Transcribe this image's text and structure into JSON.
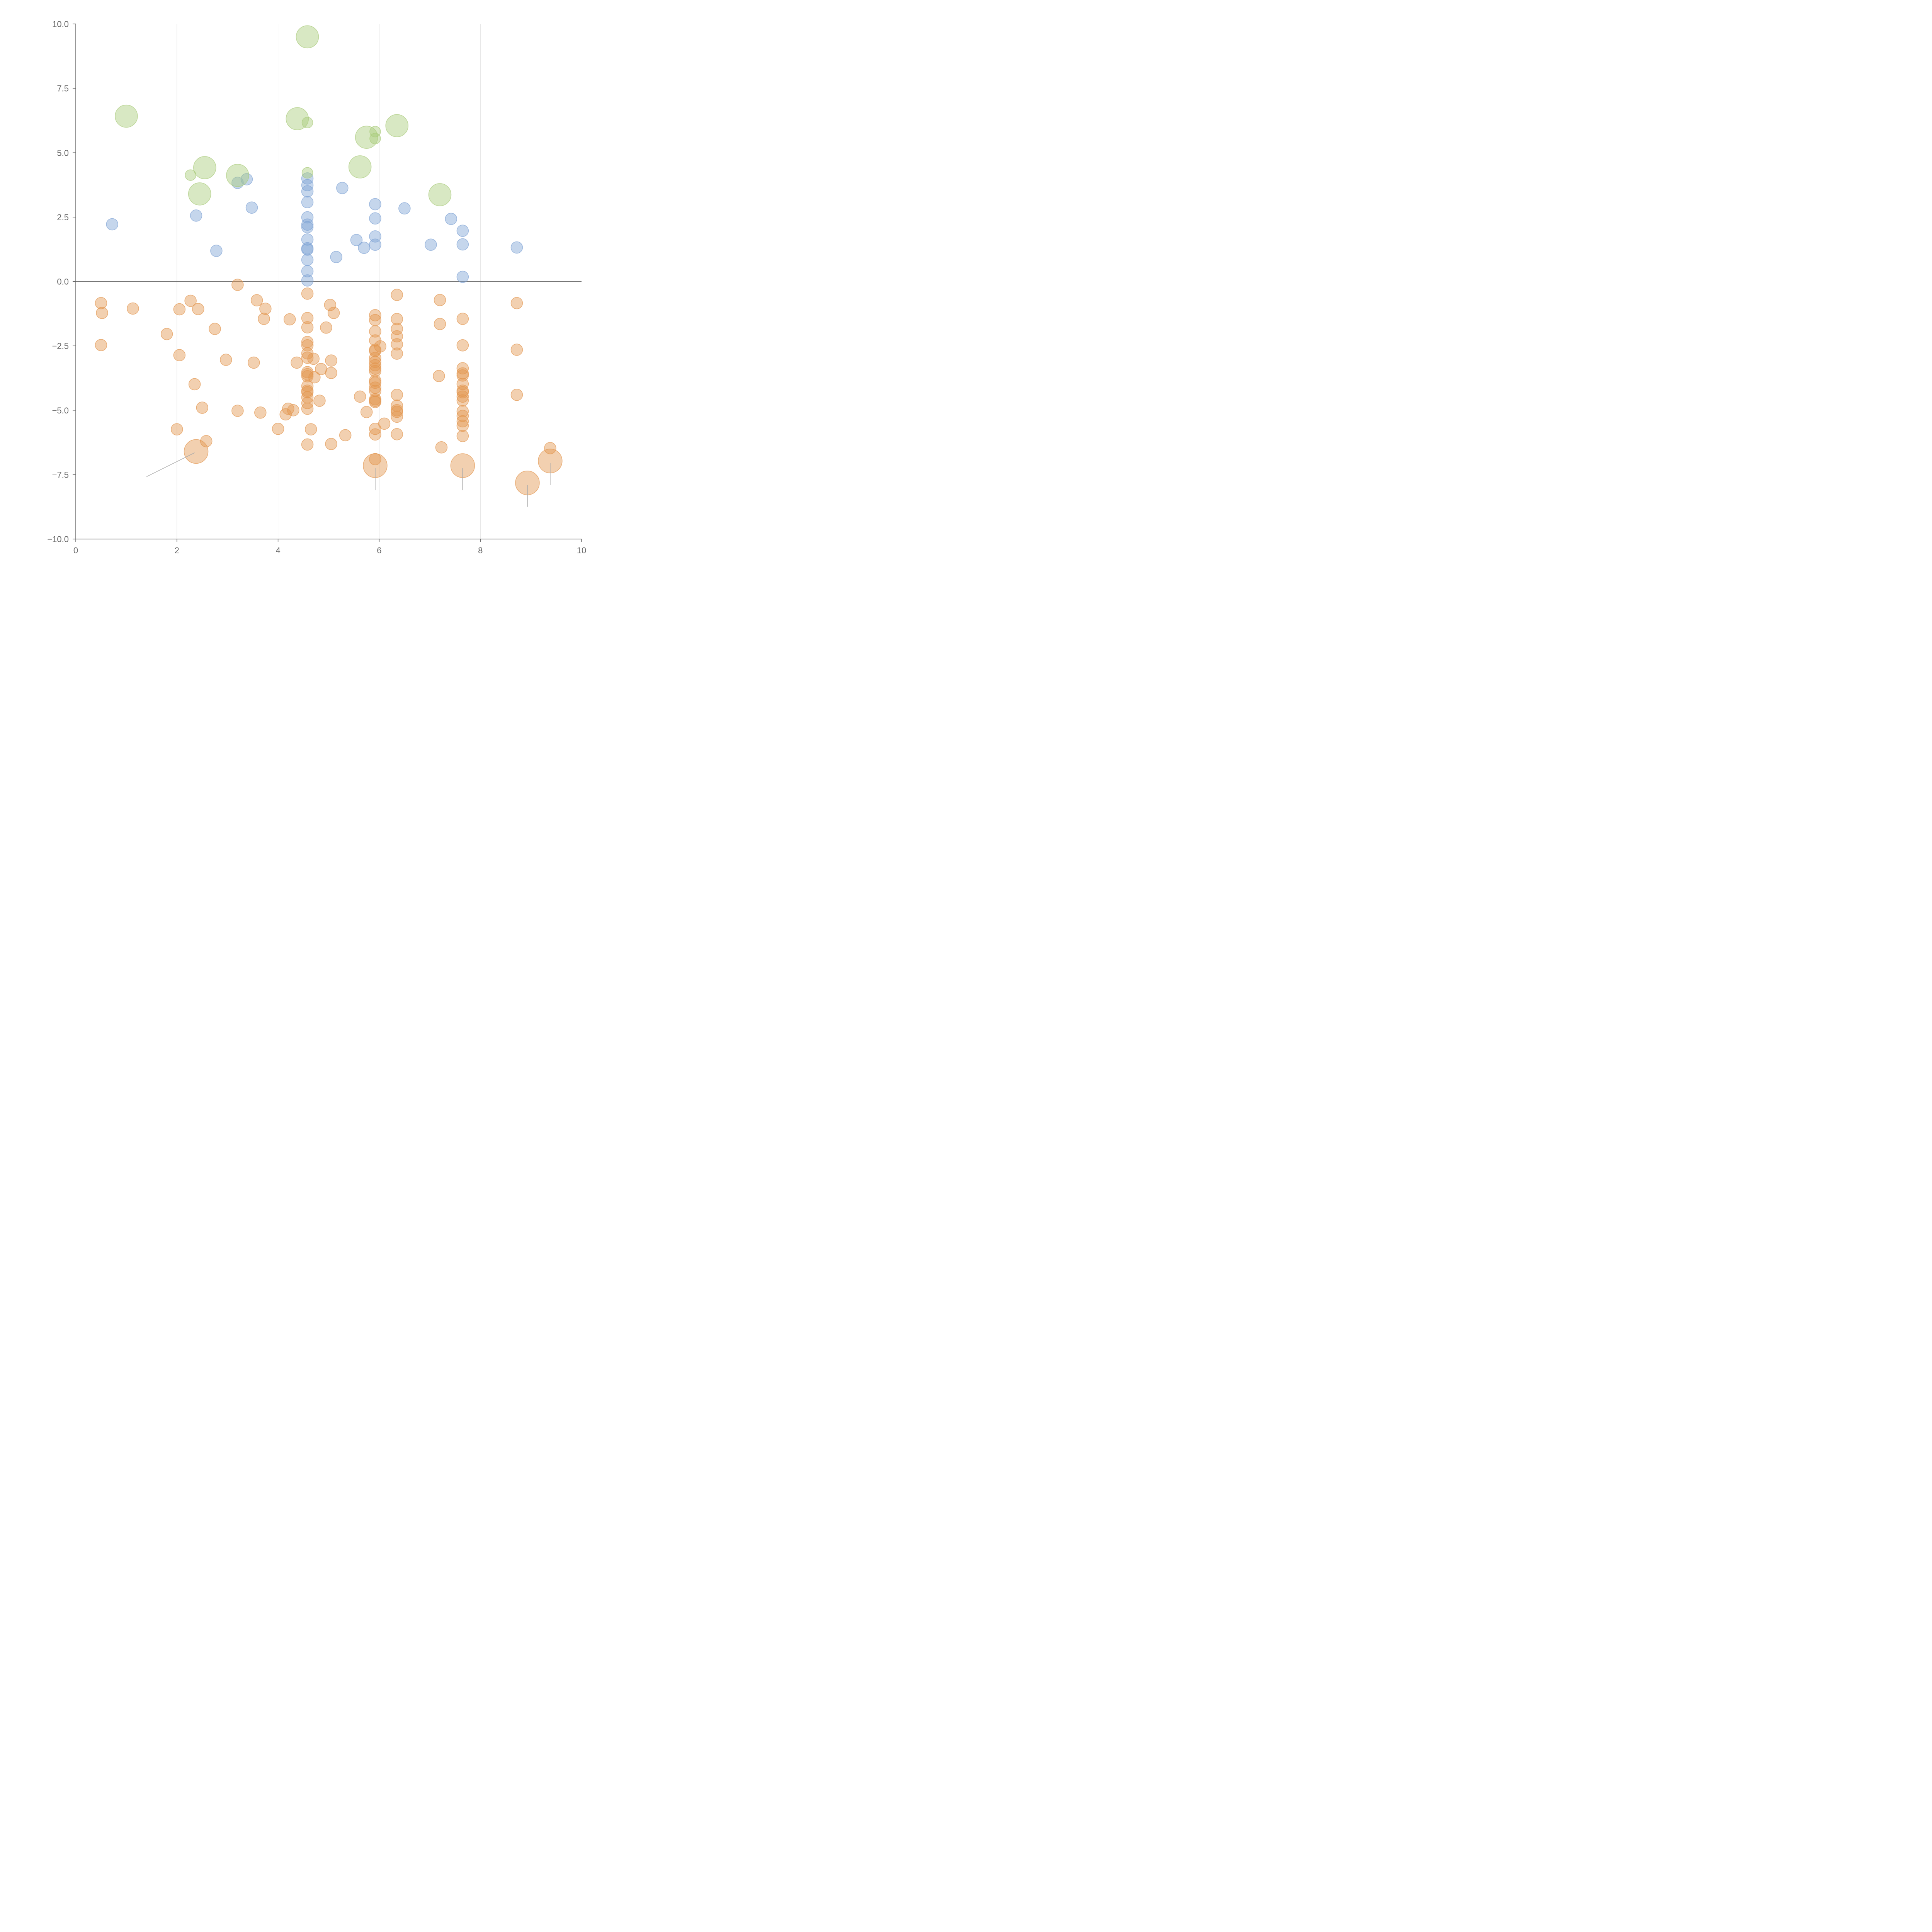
{
  "chart_data": {
    "type": "scatter",
    "xlim": [
      0,
      10
    ],
    "ylim": [
      -10,
      10
    ],
    "x_ticks": [
      "0",
      "2",
      "4",
      "6",
      "8",
      "10"
    ],
    "y_ticks": [
      "10.0",
      "7.5",
      "5.0",
      "2.5",
      "0.0",
      "−2.5",
      "−5.0",
      "−7.5",
      "−10.0"
    ],
    "x_tick_values": [
      0,
      2,
      4,
      6,
      8,
      10
    ],
    "y_tick_values": [
      10,
      7.5,
      5,
      2.5,
      0,
      -2.5,
      -5,
      -7.5,
      -10
    ],
    "vertical_gridlines_at": [
      2,
      4,
      6,
      8
    ],
    "horizontal_reference_line": 0,
    "grid": true,
    "colors": {
      "negative": "#e3964f",
      "positive": "#7fa3d4",
      "highlight": "#a9cb7a"
    },
    "series": [
      {
        "color_key": "positive",
        "points": [
          [
            0.72,
            2.22
          ],
          [
            2.38,
            2.56
          ],
          [
            2.78,
            1.19
          ],
          [
            3.2,
            3.83
          ],
          [
            3.38,
            3.97
          ],
          [
            3.48,
            2.87
          ],
          [
            4.58,
            4.0
          ],
          [
            4.58,
            3.74
          ],
          [
            4.58,
            3.5
          ],
          [
            4.58,
            3.08
          ],
          [
            4.58,
            2.49
          ],
          [
            4.58,
            2.21
          ],
          [
            4.58,
            2.11
          ],
          [
            4.58,
            1.63
          ],
          [
            4.58,
            1.29
          ],
          [
            4.58,
            1.24
          ],
          [
            4.58,
            0.84
          ],
          [
            4.58,
            0.4
          ],
          [
            4.58,
            0.04
          ],
          [
            5.15,
            0.95
          ],
          [
            5.27,
            3.63
          ],
          [
            5.55,
            1.61
          ],
          [
            5.7,
            1.31
          ],
          [
            5.92,
            3.0
          ],
          [
            5.92,
            2.45
          ],
          [
            5.92,
            1.75
          ],
          [
            5.92,
            1.43
          ],
          [
            6.5,
            2.84
          ],
          [
            7.02,
            1.43
          ],
          [
            7.42,
            2.43
          ],
          [
            7.65,
            1.97
          ],
          [
            7.65,
            1.44
          ],
          [
            7.65,
            0.18
          ],
          [
            8.72,
            1.32
          ]
        ]
      },
      {
        "color_key": "highlight",
        "points": [
          [
            2.27,
            4.13,
            1
          ],
          [
            4.58,
            4.22,
            1
          ],
          [
            4.58,
            6.17,
            1
          ],
          [
            5.92,
            5.82,
            1
          ],
          [
            5.92,
            5.55,
            1
          ],
          [
            1.0,
            6.42,
            2
          ],
          [
            2.55,
            4.42,
            2
          ],
          [
            2.45,
            3.4,
            2
          ],
          [
            3.2,
            4.12,
            2
          ],
          [
            4.58,
            9.5,
            2
          ],
          [
            4.38,
            6.32,
            2
          ],
          [
            5.75,
            5.6,
            2
          ],
          [
            6.35,
            6.05,
            2
          ],
          [
            5.62,
            4.45,
            2
          ],
          [
            7.2,
            3.37,
            2
          ]
        ]
      },
      {
        "color_key": "negative",
        "points": [
          [
            0.5,
            -0.84
          ],
          [
            0.52,
            -1.22
          ],
          [
            0.5,
            -2.47
          ],
          [
            1.13,
            -1.05
          ],
          [
            1.8,
            -2.04
          ],
          [
            2.05,
            -1.08
          ],
          [
            2.05,
            -2.86
          ],
          [
            2.27,
            -0.75
          ],
          [
            2.42,
            -1.07
          ],
          [
            2.35,
            -3.99
          ],
          [
            2.5,
            -4.9
          ],
          [
            2.0,
            -5.74
          ],
          [
            2.58,
            -6.2
          ],
          [
            2.75,
            -1.84
          ],
          [
            2.97,
            -3.04
          ],
          [
            3.2,
            -0.13
          ],
          [
            3.2,
            -5.02
          ],
          [
            3.52,
            -3.15
          ],
          [
            3.58,
            -0.73
          ],
          [
            3.65,
            -5.09
          ],
          [
            3.72,
            -1.45
          ],
          [
            3.75,
            -1.06
          ],
          [
            4.0,
            -5.72
          ],
          [
            4.15,
            -5.16
          ],
          [
            4.2,
            -4.94
          ],
          [
            4.23,
            -1.47
          ],
          [
            4.3,
            -5.0
          ],
          [
            4.37,
            -3.15
          ],
          [
            4.58,
            -0.47
          ],
          [
            4.58,
            -1.42
          ],
          [
            4.58,
            -1.78
          ],
          [
            4.58,
            -2.35
          ],
          [
            4.58,
            -2.48
          ],
          [
            4.58,
            -2.79
          ],
          [
            4.58,
            -2.96
          ],
          [
            4.58,
            -3.52
          ],
          [
            4.58,
            -3.6
          ],
          [
            4.58,
            -3.68
          ],
          [
            4.58,
            -4.06
          ],
          [
            4.58,
            -4.24
          ],
          [
            4.58,
            -4.3
          ],
          [
            4.58,
            -4.5
          ],
          [
            4.58,
            -4.72
          ],
          [
            4.58,
            -4.94
          ],
          [
            4.58,
            -6.33
          ],
          [
            4.65,
            -5.74
          ],
          [
            4.7,
            -3.0
          ],
          [
            4.72,
            -3.72
          ],
          [
            4.82,
            -4.63
          ],
          [
            4.85,
            -3.4
          ],
          [
            4.95,
            -1.79
          ],
          [
            5.03,
            -0.91
          ],
          [
            5.05,
            -3.07
          ],
          [
            5.05,
            -3.55
          ],
          [
            5.05,
            -6.31
          ],
          [
            5.1,
            -1.22
          ],
          [
            5.33,
            -5.97
          ],
          [
            5.62,
            -4.47
          ],
          [
            5.75,
            -5.07
          ],
          [
            5.92,
            -1.31
          ],
          [
            5.92,
            -1.5
          ],
          [
            5.92,
            -1.94
          ],
          [
            5.92,
            -2.29
          ],
          [
            5.92,
            -2.65
          ],
          [
            5.92,
            -2.7
          ],
          [
            5.92,
            -2.97
          ],
          [
            5.92,
            -3.12
          ],
          [
            5.92,
            -3.25
          ],
          [
            5.92,
            -3.38
          ],
          [
            5.92,
            -3.48
          ],
          [
            5.92,
            -3.85
          ],
          [
            5.92,
            -3.93
          ],
          [
            5.92,
            -4.12
          ],
          [
            5.92,
            -4.25
          ],
          [
            5.92,
            -4.57
          ],
          [
            5.92,
            -4.63
          ],
          [
            5.92,
            -4.68
          ],
          [
            5.92,
            -5.72
          ],
          [
            5.92,
            -5.94
          ],
          [
            5.92,
            -6.9
          ],
          [
            6.02,
            -2.52
          ],
          [
            6.1,
            -5.52
          ],
          [
            6.35,
            -0.52
          ],
          [
            6.35,
            -1.46
          ],
          [
            6.35,
            -1.84
          ],
          [
            6.35,
            -2.13
          ],
          [
            6.35,
            -2.44
          ],
          [
            6.35,
            -2.8
          ],
          [
            6.35,
            -4.4
          ],
          [
            6.35,
            -4.82
          ],
          [
            6.35,
            -5.0
          ],
          [
            6.35,
            -5.06
          ],
          [
            6.35,
            -5.25
          ],
          [
            6.35,
            -5.93
          ],
          [
            7.2,
            -0.72
          ],
          [
            7.2,
            -1.65
          ],
          [
            7.18,
            -3.67
          ],
          [
            7.23,
            -6.44
          ],
          [
            7.65,
            -1.45
          ],
          [
            7.65,
            -2.48
          ],
          [
            7.65,
            -3.37
          ],
          [
            7.65,
            -3.57
          ],
          [
            7.65,
            -3.65
          ],
          [
            7.65,
            -3.98
          ],
          [
            7.65,
            -4.24
          ],
          [
            7.65,
            -4.3
          ],
          [
            7.65,
            -4.47
          ],
          [
            7.65,
            -4.62
          ],
          [
            7.65,
            -5.04
          ],
          [
            7.65,
            -5.22
          ],
          [
            7.65,
            -5.43
          ],
          [
            7.65,
            -5.6
          ],
          [
            7.65,
            -6.0
          ],
          [
            8.72,
            -0.84
          ],
          [
            8.72,
            -2.65
          ],
          [
            8.72,
            -4.4
          ],
          [
            9.38,
            -6.47
          ]
        ]
      },
      {
        "color_key": "negative",
        "size": "large",
        "points": [
          [
            2.38,
            -6.6
          ],
          [
            5.92,
            -7.15
          ],
          [
            7.65,
            -7.15
          ],
          [
            8.93,
            -7.82
          ],
          [
            9.38,
            -6.97
          ]
        ]
      }
    ],
    "callout_leaders": [
      [
        [
          2.35,
          -6.65
        ],
        [
          1.4,
          -7.58
        ]
      ],
      [
        [
          5.92,
          -7.25
        ],
        [
          5.92,
          -8.1
        ]
      ],
      [
        [
          7.65,
          -7.25
        ],
        [
          7.65,
          -8.1
        ]
      ],
      [
        [
          8.93,
          -7.9
        ],
        [
          8.93,
          -8.75
        ]
      ],
      [
        [
          9.38,
          -7.05
        ],
        [
          9.38,
          -7.9
        ]
      ]
    ]
  }
}
